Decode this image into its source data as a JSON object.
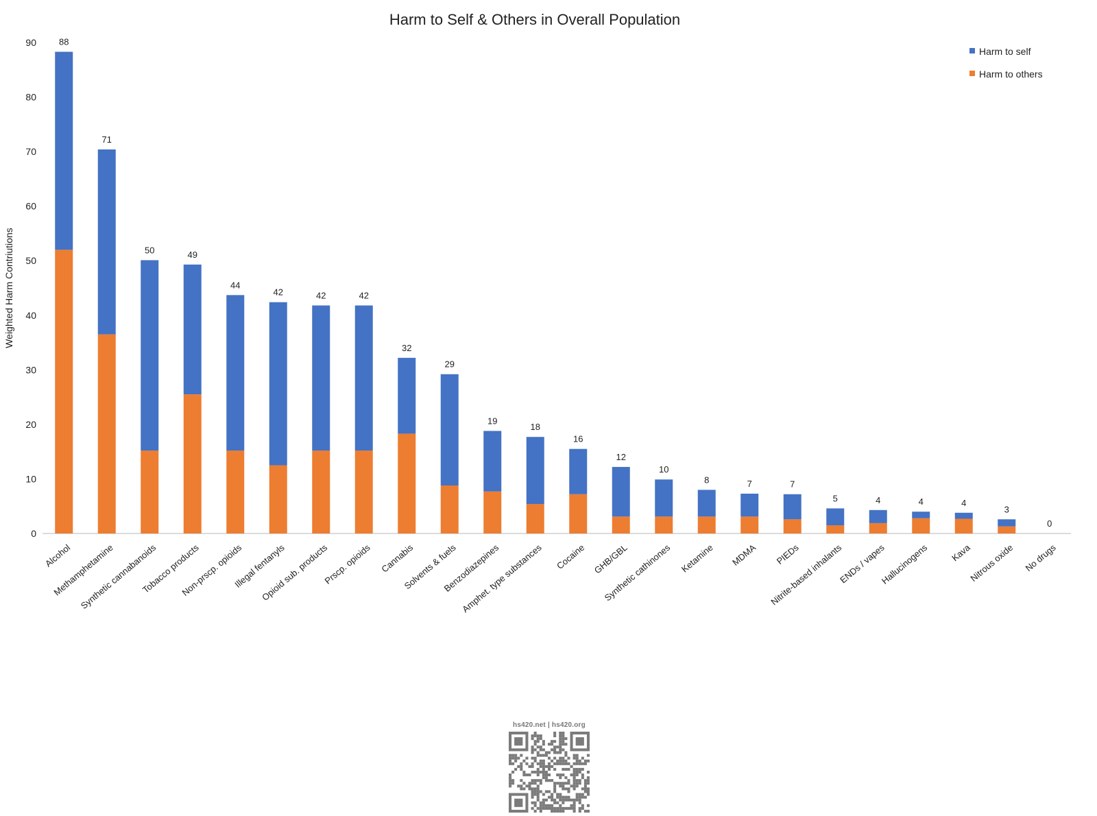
{
  "chart_data": {
    "type": "bar",
    "stacked": true,
    "title": "Harm to Self & Others in Overall Population",
    "ylabel": "Weighted Harm Contriutions",
    "xlabel": "",
    "ylim": [
      0,
      90
    ],
    "yticks": [
      0,
      10,
      20,
      30,
      40,
      50,
      60,
      70,
      80,
      90
    ],
    "grid": false,
    "legend_position": "top-right",
    "categories": [
      "Alcohol",
      "Methamphetamine",
      "Synthetic cannabanoids",
      "Tobacco products",
      "Non-prscp. opioids",
      "Illegal fentanyls",
      "Opioid sub. products",
      "Prscp. opioids",
      "Cannabis",
      "Solvents & fuels",
      "Benzodiazepines",
      "Amphet. type substances",
      "Cocaine",
      "GHB/GBL",
      "Synthetic cathinones",
      "Ketamine",
      "MDMA",
      "PIEDs",
      "Nitrite-based inhalants",
      "ENDs / vapes",
      "Hallucinogens",
      "Kava",
      "Nitrous oxide",
      "No drugs"
    ],
    "series": [
      {
        "name": "Harm to others",
        "color": "#ED7D31",
        "values": [
          52,
          36.5,
          15.2,
          25.5,
          15.2,
          12.5,
          15.2,
          15.2,
          18.3,
          8.8,
          7.7,
          5.4,
          7.2,
          3.1,
          3.1,
          3.1,
          3.1,
          2.6,
          1.5,
          1.9,
          2.8,
          2.7,
          1.3,
          0
        ]
      },
      {
        "name": "Harm to self",
        "color": "#4472C4",
        "values": [
          36.3,
          33.9,
          34.9,
          23.8,
          28.5,
          29.9,
          26.6,
          26.6,
          13.9,
          20.4,
          11.1,
          12.3,
          8.3,
          9.1,
          6.8,
          4.9,
          4.2,
          4.6,
          3.1,
          2.4,
          1.2,
          1.1,
          1.3,
          0
        ]
      }
    ],
    "data_labels": [
      "88",
      "71",
      "50",
      "49",
      "44",
      "42",
      "42",
      "42",
      "32",
      "29",
      "19",
      "18",
      "16",
      "12",
      "10",
      "8",
      "7",
      "7",
      "5",
      "4",
      "4",
      "4",
      "3",
      "0"
    ]
  },
  "legend": {
    "self_label": "Harm to self",
    "others_label": "Harm to others",
    "self_color": "#4472C4",
    "others_color": "#ED7D31"
  },
  "footer": {
    "qr_caption": "hs420.net | hs420.org",
    "qr_icon": "qr-code-icon"
  }
}
